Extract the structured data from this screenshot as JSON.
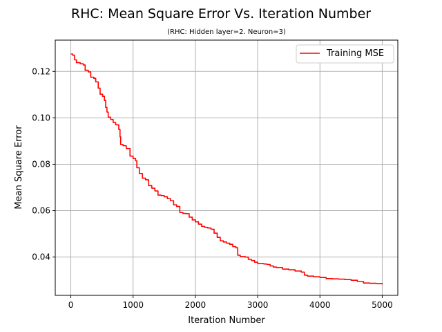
{
  "chart_data": {
    "type": "line",
    "title": "RHC: Mean Square Error Vs. Iteration Number",
    "subtitle": "(RHC: Hidden layer=2. Neuron=3)",
    "xlabel": "Iteration Number",
    "ylabel": "Mean Square Error",
    "xlim": [
      -250,
      5250
    ],
    "ylim": [
      0.0235,
      0.1335
    ],
    "xticks": [
      0,
      1000,
      2000,
      3000,
      4000,
      5000
    ],
    "xtick_labels": [
      "0",
      "1000",
      "2000",
      "3000",
      "4000",
      "5000"
    ],
    "yticks": [
      0.04,
      0.06,
      0.08,
      0.1,
      0.12
    ],
    "ytick_labels": [
      "0.04",
      "0.06",
      "0.08",
      "0.10",
      "0.12"
    ],
    "grid": true,
    "legend_position": "top-right",
    "series": [
      {
        "name": "Training MSE",
        "color": "#ff0000",
        "points": [
          [
            0,
            0.1275
          ],
          [
            30,
            0.127
          ],
          [
            60,
            0.125
          ],
          [
            90,
            0.1238
          ],
          [
            150,
            0.1233
          ],
          [
            200,
            0.1228
          ],
          [
            230,
            0.1205
          ],
          [
            280,
            0.1198
          ],
          [
            320,
            0.1175
          ],
          [
            370,
            0.117
          ],
          [
            400,
            0.1155
          ],
          [
            440,
            0.1128
          ],
          [
            470,
            0.1102
          ],
          [
            510,
            0.1093
          ],
          [
            540,
            0.1075
          ],
          [
            560,
            0.1045
          ],
          [
            580,
            0.1025
          ],
          [
            600,
            0.1003
          ],
          [
            640,
            0.0993
          ],
          [
            680,
            0.098
          ],
          [
            720,
            0.097
          ],
          [
            770,
            0.095
          ],
          [
            790,
            0.0918
          ],
          [
            800,
            0.0885
          ],
          [
            840,
            0.088
          ],
          [
            890,
            0.0868
          ],
          [
            950,
            0.0835
          ],
          [
            1000,
            0.0825
          ],
          [
            1040,
            0.0815
          ],
          [
            1060,
            0.0785
          ],
          [
            1100,
            0.076
          ],
          [
            1150,
            0.074
          ],
          [
            1200,
            0.0733
          ],
          [
            1250,
            0.0708
          ],
          [
            1300,
            0.0697
          ],
          [
            1350,
            0.0685
          ],
          [
            1400,
            0.0667
          ],
          [
            1450,
            0.0665
          ],
          [
            1500,
            0.066
          ],
          [
            1550,
            0.0652
          ],
          [
            1600,
            0.0643
          ],
          [
            1650,
            0.0625
          ],
          [
            1700,
            0.0618
          ],
          [
            1750,
            0.0592
          ],
          [
            1800,
            0.0588
          ],
          [
            1850,
            0.0587
          ],
          [
            1900,
            0.0572
          ],
          [
            1950,
            0.056
          ],
          [
            2000,
            0.0552
          ],
          [
            2050,
            0.0542
          ],
          [
            2100,
            0.0532
          ],
          [
            2150,
            0.0528
          ],
          [
            2200,
            0.0525
          ],
          [
            2250,
            0.052
          ],
          [
            2300,
            0.0503
          ],
          [
            2350,
            0.0485
          ],
          [
            2400,
            0.047
          ],
          [
            2450,
            0.0465
          ],
          [
            2500,
            0.046
          ],
          [
            2550,
            0.0455
          ],
          [
            2600,
            0.0445
          ],
          [
            2650,
            0.044
          ],
          [
            2680,
            0.0408
          ],
          [
            2720,
            0.0402
          ],
          [
            2800,
            0.04
          ],
          [
            2850,
            0.039
          ],
          [
            2900,
            0.0385
          ],
          [
            2950,
            0.0378
          ],
          [
            3000,
            0.0372
          ],
          [
            3100,
            0.037
          ],
          [
            3150,
            0.0368
          ],
          [
            3200,
            0.0362
          ],
          [
            3250,
            0.0357
          ],
          [
            3300,
            0.0355
          ],
          [
            3400,
            0.0348
          ],
          [
            3500,
            0.0345
          ],
          [
            3600,
            0.034
          ],
          [
            3700,
            0.0335
          ],
          [
            3750,
            0.0322
          ],
          [
            3800,
            0.0318
          ],
          [
            3900,
            0.0315
          ],
          [
            4000,
            0.0312
          ],
          [
            4100,
            0.0307
          ],
          [
            4200,
            0.0306
          ],
          [
            4300,
            0.0305
          ],
          [
            4400,
            0.0303
          ],
          [
            4500,
            0.03
          ],
          [
            4600,
            0.0295
          ],
          [
            4700,
            0.0288
          ],
          [
            4800,
            0.0287
          ],
          [
            4900,
            0.0286
          ],
          [
            5000,
            0.0282
          ]
        ]
      }
    ]
  }
}
